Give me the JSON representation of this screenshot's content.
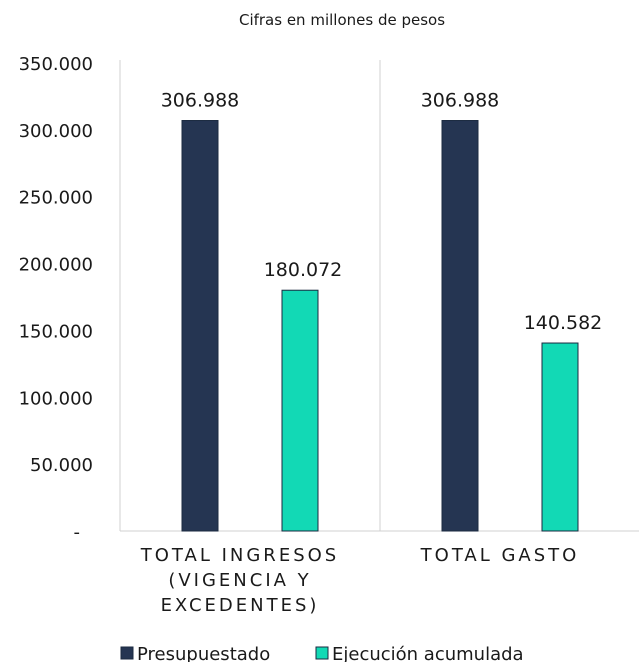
{
  "chart_data": {
    "type": "bar",
    "subtitle": "Cifras en millones de pesos",
    "categories": [
      [
        "TOTAL INGRESOS",
        "(VIGENCIA Y",
        "EXCEDENTES)"
      ],
      [
        "TOTAL GASTO"
      ]
    ],
    "series": [
      {
        "name": "Presupuestado",
        "values": [
          306988,
          306988
        ],
        "labels": [
          "306.988",
          "306.988"
        ],
        "color": "#253552"
      },
      {
        "name": "Ejecución acumulada",
        "values": [
          180072,
          140582
        ],
        "labels": [
          "180.072",
          "140.582"
        ],
        "color": "#12d9b5"
      }
    ],
    "ylim": [
      0,
      350000
    ],
    "yticks": [
      {
        "value": 0,
        "label": "-"
      },
      {
        "value": 50000,
        "label": "50.000"
      },
      {
        "value": 100000,
        "label": "100.000"
      },
      {
        "value": 150000,
        "label": "150.000"
      },
      {
        "value": 200000,
        "label": "200.000"
      },
      {
        "value": 250000,
        "label": "250.000"
      },
      {
        "value": 300000,
        "label": "300.000"
      },
      {
        "value": 350000,
        "label": "350.000"
      }
    ],
    "grid": false,
    "legend": "bottom"
  }
}
